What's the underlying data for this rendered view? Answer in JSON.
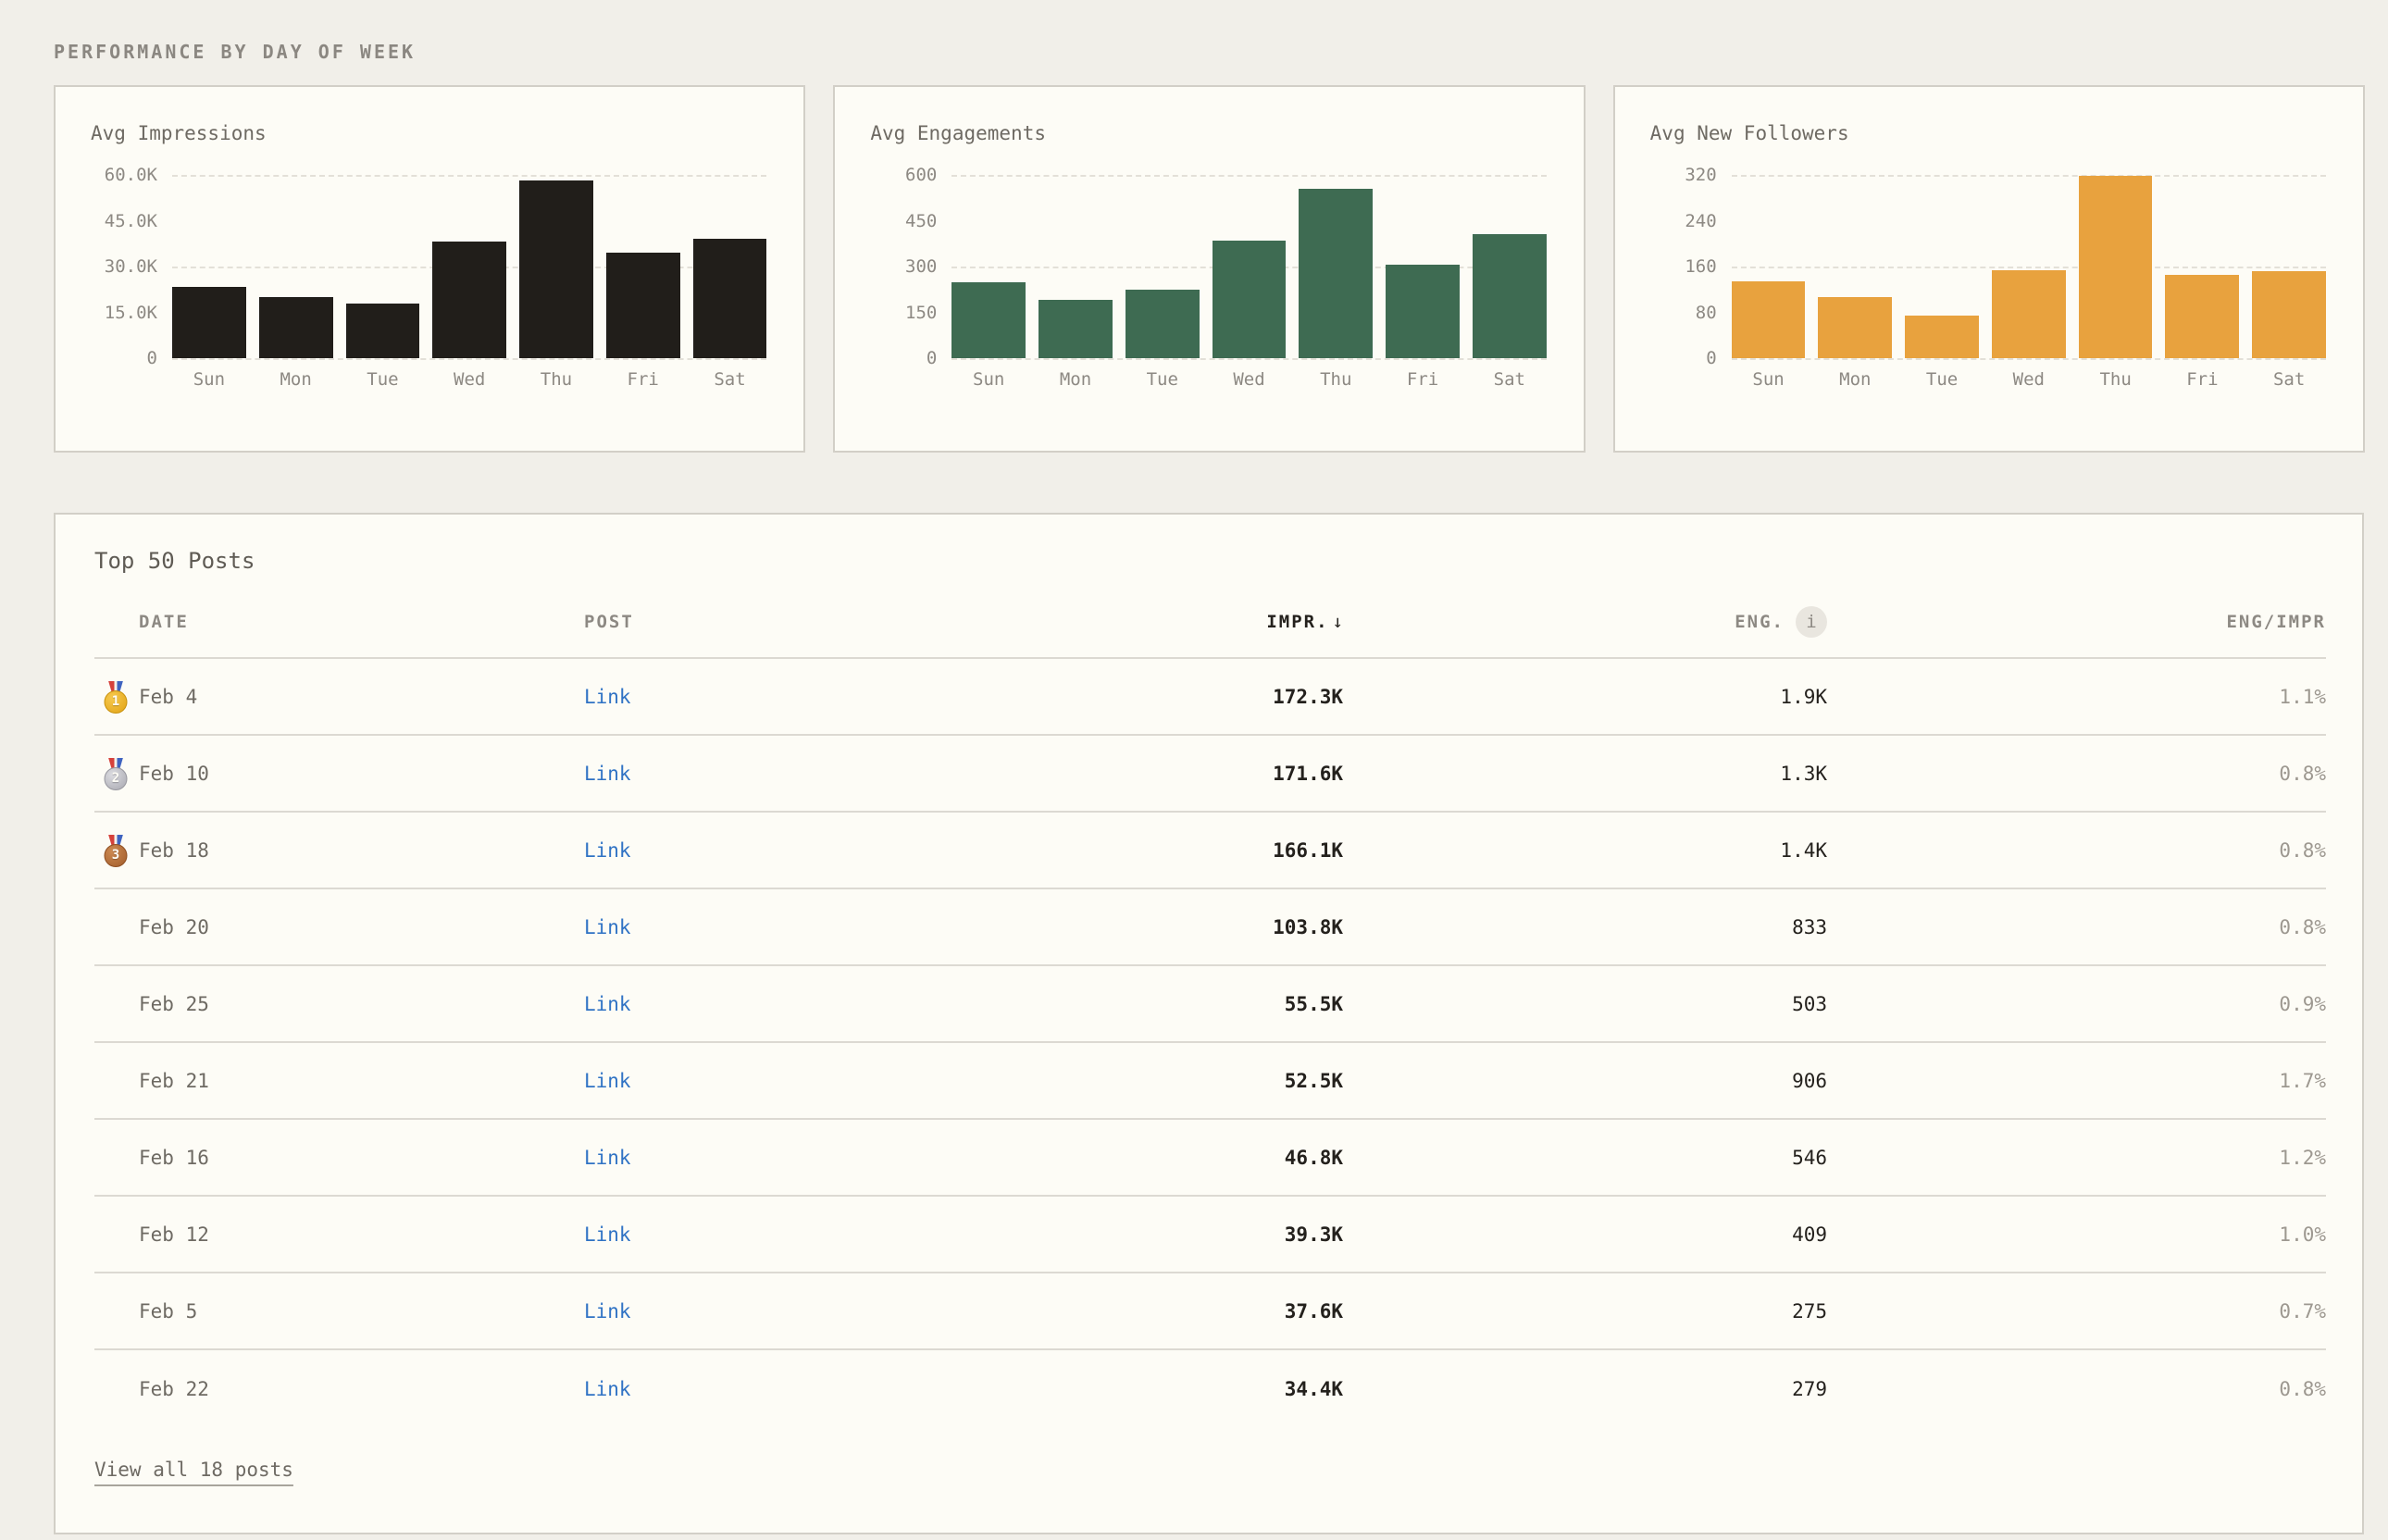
{
  "section_title": "PERFORMANCE BY DAY OF WEEK",
  "colors": {
    "page_bg": "#f1efe9",
    "card_bg": "#fdfcf6",
    "card_border": "#d2cfc7",
    "impressions_bar": "#211e1a",
    "engagements_bar": "#3e6b52",
    "followers_bar": "#e8a23e",
    "link_blue": "#2f72c4",
    "muted_text": "#8d8983",
    "dark_text": "#24211d"
  },
  "chart_data": [
    {
      "type": "bar",
      "title": "Avg Impressions",
      "categories": [
        "Sun",
        "Mon",
        "Tue",
        "Wed",
        "Thu",
        "Fri",
        "Sat"
      ],
      "values": [
        23300,
        20000,
        17800,
        38300,
        58100,
        34700,
        39200
      ],
      "ylim": [
        0,
        60000
      ],
      "y_ticks": [
        "60.0K",
        "45.0K",
        "30.0K",
        "15.0K",
        "0"
      ],
      "grid": "dashed horizontal at max, mid, zero",
      "legend": "none",
      "bar_color": "#211e1a"
    },
    {
      "type": "bar",
      "title": "Avg Engagements",
      "categories": [
        "Sun",
        "Mon",
        "Tue",
        "Wed",
        "Thu",
        "Fri",
        "Sat"
      ],
      "values": [
        250,
        190,
        225,
        385,
        555,
        305,
        405
      ],
      "ylim": [
        0,
        600
      ],
      "y_ticks": [
        "600",
        "450",
        "300",
        "150",
        "0"
      ],
      "grid": "dashed horizontal at max, mid, zero",
      "legend": "none",
      "bar_color": "#3e6b52"
    },
    {
      "type": "bar",
      "title": "Avg New Followers",
      "categories": [
        "Sun",
        "Mon",
        "Tue",
        "Wed",
        "Thu",
        "Fri",
        "Sat"
      ],
      "values": [
        134,
        107,
        74,
        153,
        318,
        146,
        152
      ],
      "ylim": [
        0,
        320
      ],
      "y_ticks": [
        "320",
        "240",
        "160",
        "80",
        "0"
      ],
      "grid": "dashed horizontal at max, mid, zero",
      "legend": "none",
      "bar_color": "#e8a23e"
    }
  ],
  "table": {
    "title": "Top 50 Posts",
    "columns": {
      "date": "DATE",
      "post": "POST",
      "impr": "IMPR.",
      "impr_sort_arrow": "↓",
      "eng": "ENG.",
      "eng_info": "i",
      "ratio": "ENG/IMPR"
    },
    "rows": [
      {
        "rank": 1,
        "date": "Feb 4",
        "post": "Link",
        "impr": "172.3K",
        "eng": "1.9K",
        "ratio": "1.1%"
      },
      {
        "rank": 2,
        "date": "Feb 10",
        "post": "Link",
        "impr": "171.6K",
        "eng": "1.3K",
        "ratio": "0.8%"
      },
      {
        "rank": 3,
        "date": "Feb 18",
        "post": "Link",
        "impr": "166.1K",
        "eng": "1.4K",
        "ratio": "0.8%"
      },
      {
        "date": "Feb 20",
        "post": "Link",
        "impr": "103.8K",
        "eng": "833",
        "ratio": "0.8%"
      },
      {
        "date": "Feb 25",
        "post": "Link",
        "impr": "55.5K",
        "eng": "503",
        "ratio": "0.9%"
      },
      {
        "date": "Feb 21",
        "post": "Link",
        "impr": "52.5K",
        "eng": "906",
        "ratio": "1.7%"
      },
      {
        "date": "Feb 16",
        "post": "Link",
        "impr": "46.8K",
        "eng": "546",
        "ratio": "1.2%"
      },
      {
        "date": "Feb 12",
        "post": "Link",
        "impr": "39.3K",
        "eng": "409",
        "ratio": "1.0%"
      },
      {
        "date": "Feb 5",
        "post": "Link",
        "impr": "37.6K",
        "eng": "275",
        "ratio": "0.7%"
      },
      {
        "date": "Feb 22",
        "post": "Link",
        "impr": "34.4K",
        "eng": "279",
        "ratio": "0.8%"
      }
    ],
    "footer_link": "View all 18 posts"
  }
}
